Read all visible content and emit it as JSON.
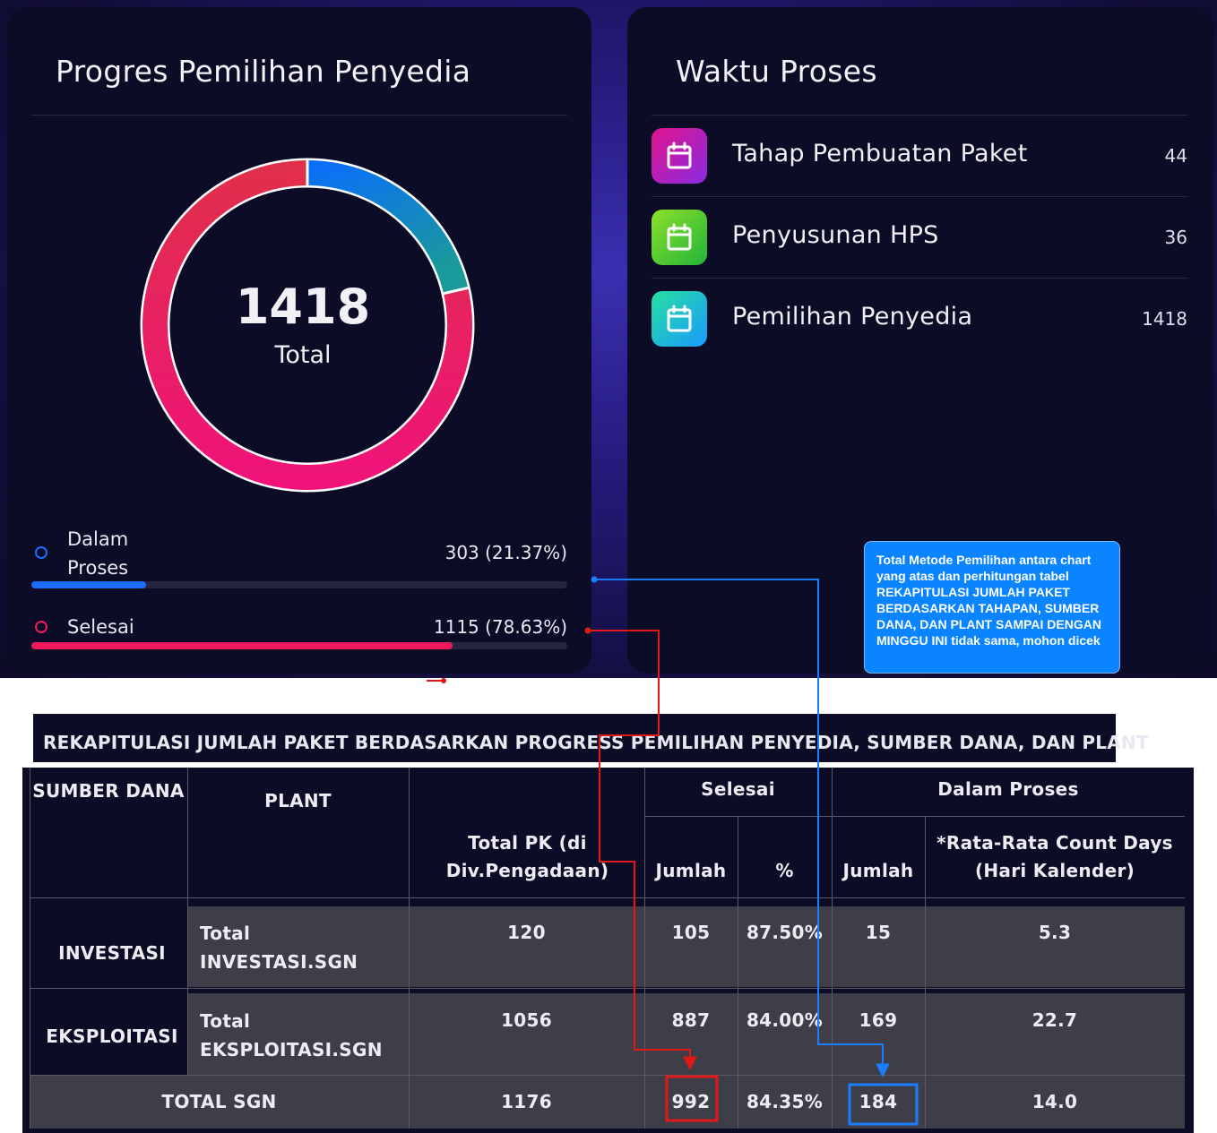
{
  "progres": {
    "title": "Progres Pemilihan Penyedia",
    "total": "1418",
    "total_label": "Total",
    "legend": [
      {
        "label": "Dalam Proses",
        "value_text": "303 (21.37%)",
        "value": 303,
        "percent": 21.37,
        "color": "#1a6dff"
      },
      {
        "label": "Selesai",
        "value_text": "1115 (78.63%)",
        "value": 1115,
        "percent": 78.63,
        "color": "#f2185e"
      }
    ]
  },
  "waktu": {
    "title": "Waktu Proses",
    "items": [
      {
        "label": "Tahap Pembuatan Paket",
        "value": "44",
        "icon": "calendar-icon",
        "color_from": "#e0148c",
        "color_to": "#8a2be2"
      },
      {
        "label": "Penyusunan HPS",
        "value": "36",
        "icon": "calendar-icon",
        "color_from": "#8de02a",
        "color_to": "#22b53a"
      },
      {
        "label": "Pemilihan Penyedia",
        "value": "1418",
        "icon": "calendar-icon",
        "color_from": "#25e0a0",
        "color_to": "#1a9aff"
      }
    ]
  },
  "note": {
    "text": "Total Metode Pemilihan antara chart yang atas dan perhitungan tabel REKAPITULASI JUMLAH PAKET BERDASARKAN TAHAPAN, SUMBER DANA, DAN PLANT SAMPAI DENGAN MINGGU INI tidak sama, mohon dicek",
    "color": "#0a84ff"
  },
  "table": {
    "title": "REKAPITULASI JUMLAH PAKET BERDASARKAN PROGRESS PEMILIHAN PENYEDIA, SUMBER DANA, DAN PLANT",
    "headers": {
      "sumber_dana": "SUMBER DANA",
      "plant": "PLANT",
      "total_pk": "Total PK (di Div.Pengadaan)",
      "selesai": "Selesai",
      "dalam_proses": "Dalam Proses",
      "jumlah": "Jumlah",
      "persen": "%",
      "rata_rata": "*Rata-Rata Count Days (Hari Kalender)"
    },
    "rows": [
      {
        "sumber": "INVESTASI",
        "plant": "Total INVESTASI.SGN",
        "total_pk": "120",
        "selesai_jumlah": "105",
        "selesai_persen": "87.50%",
        "proses_jumlah": "15",
        "rata": "5.3"
      },
      {
        "sumber": "EKSPLOITASI",
        "plant": "Total EKSPLOITASI.SGN",
        "total_pk": "1056",
        "selesai_jumlah": "887",
        "selesai_persen": "84.00%",
        "proses_jumlah": "169",
        "rata": "22.7"
      }
    ],
    "total": {
      "label": "TOTAL SGN",
      "total_pk": "1176",
      "selesai_jumlah": "992",
      "selesai_persen": "84.35%",
      "proses_jumlah": "184",
      "rata": "14.0"
    }
  },
  "annotation_colors": {
    "red": "#e01818",
    "blue": "#1a7dff"
  }
}
